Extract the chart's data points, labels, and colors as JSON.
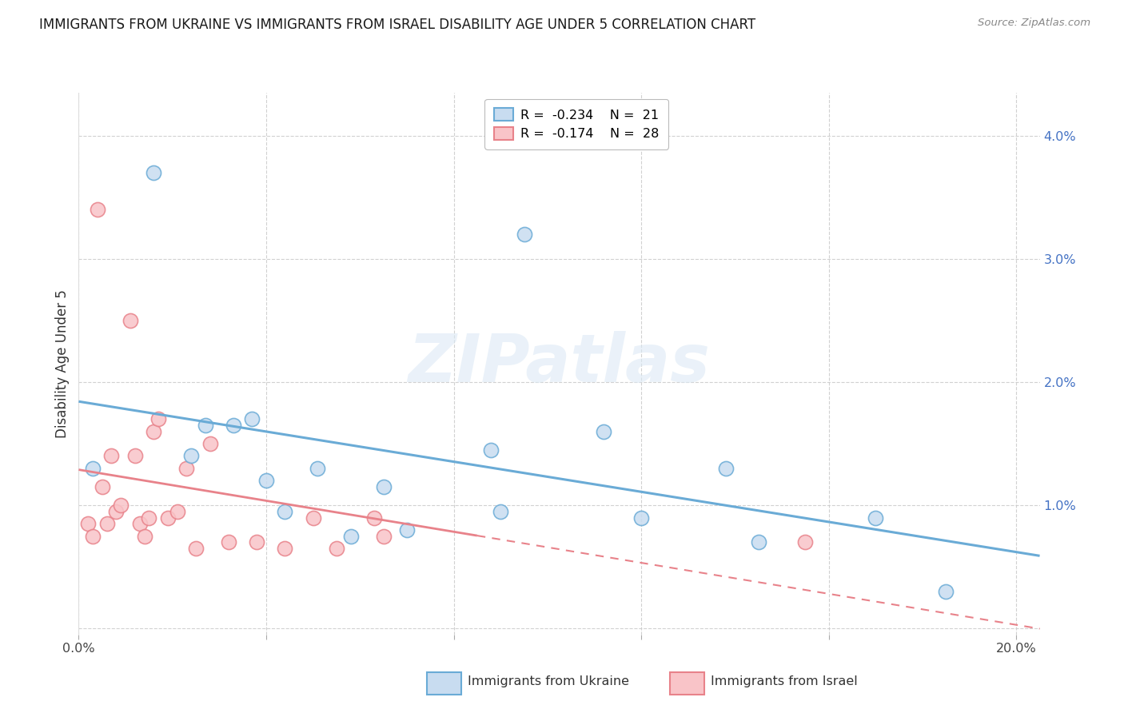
{
  "title": "IMMIGRANTS FROM UKRAINE VS IMMIGRANTS FROM ISRAEL DISABILITY AGE UNDER 5 CORRELATION CHART",
  "source": "Source: ZipAtlas.com",
  "ylabel": "Disability Age Under 5",
  "xlim": [
    0.0,
    0.205
  ],
  "ylim": [
    -0.0005,
    0.0435
  ],
  "xticks": [
    0.0,
    0.04,
    0.08,
    0.12,
    0.16,
    0.2
  ],
  "yticks": [
    0.0,
    0.01,
    0.02,
    0.03,
    0.04
  ],
  "ukraine_color": "#6aabd6",
  "ukraine_face": "#c8dcf0",
  "israel_color": "#e8828a",
  "israel_face": "#f9c4c8",
  "ukraine_R": -0.234,
  "ukraine_N": 21,
  "israel_R": -0.174,
  "israel_N": 28,
  "ukraine_x": [
    0.003,
    0.016,
    0.024,
    0.027,
    0.033,
    0.037,
    0.04,
    0.044,
    0.051,
    0.058,
    0.065,
    0.07,
    0.088,
    0.09,
    0.095,
    0.112,
    0.12,
    0.138,
    0.145,
    0.17,
    0.185
  ],
  "ukraine_y": [
    0.013,
    0.037,
    0.014,
    0.0165,
    0.0165,
    0.017,
    0.012,
    0.0095,
    0.013,
    0.0075,
    0.0115,
    0.008,
    0.0145,
    0.0095,
    0.032,
    0.016,
    0.009,
    0.013,
    0.007,
    0.009,
    0.003
  ],
  "israel_x": [
    0.002,
    0.003,
    0.004,
    0.005,
    0.006,
    0.007,
    0.008,
    0.009,
    0.011,
    0.012,
    0.013,
    0.014,
    0.015,
    0.016,
    0.017,
    0.019,
    0.021,
    0.023,
    0.025,
    0.028,
    0.032,
    0.038,
    0.044,
    0.05,
    0.055,
    0.063,
    0.065,
    0.155
  ],
  "israel_y": [
    0.0085,
    0.0075,
    0.034,
    0.0115,
    0.0085,
    0.014,
    0.0095,
    0.01,
    0.025,
    0.014,
    0.0085,
    0.0075,
    0.009,
    0.016,
    0.017,
    0.009,
    0.0095,
    0.013,
    0.0065,
    0.015,
    0.007,
    0.007,
    0.0065,
    0.009,
    0.0065,
    0.009,
    0.0075,
    0.007
  ],
  "watermark_text": "ZIPatlas",
  "footer_labels": [
    "Immigrants from Ukraine",
    "Immigrants from Israel"
  ],
  "footer_colors": [
    "#6aabd6",
    "#e8828a"
  ],
  "footer_faces": [
    "#c8dcf0",
    "#f9c4c8"
  ]
}
